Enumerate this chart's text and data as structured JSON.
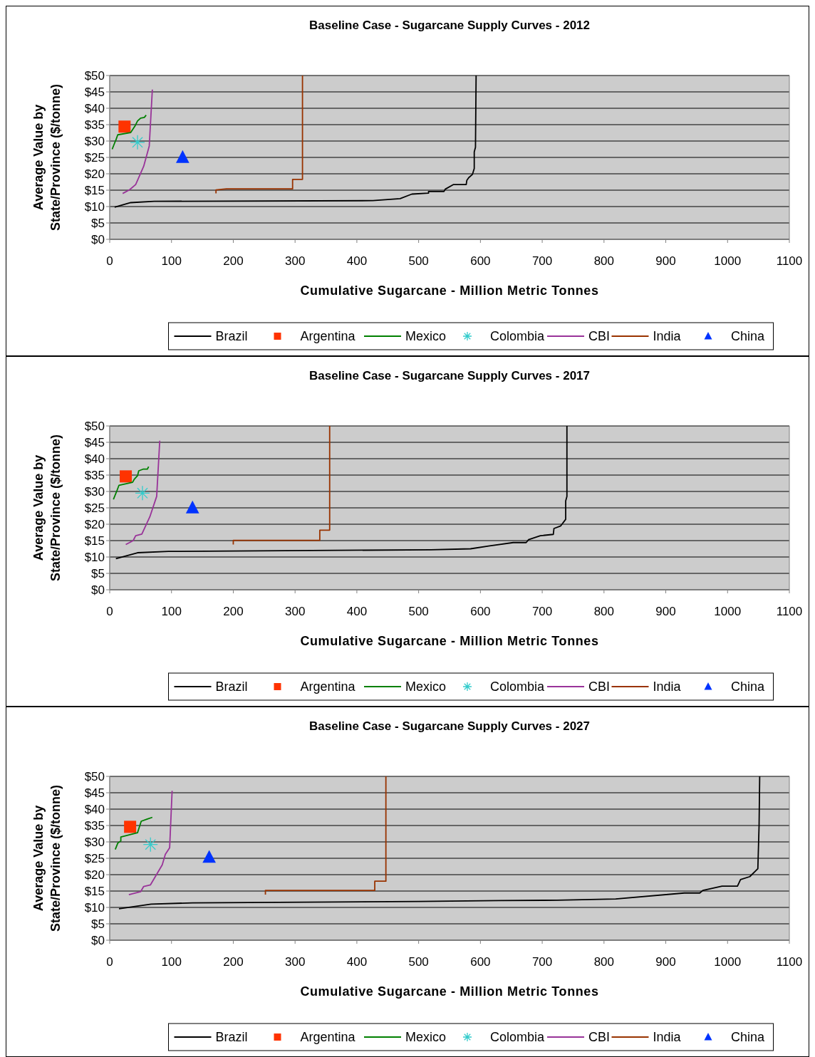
{
  "chart_data": [
    {
      "type": "line",
      "title": "Baseline Case - Sugarcane Supply Curves - 2012",
      "xlabel": "Cumulative Sugarcane - Million Metric Tonnes",
      "ylabel": "Average Value by State/Province ($/tonne)",
      "xlim": [
        0,
        1100
      ],
      "xticks": [
        0,
        100,
        200,
        300,
        400,
        500,
        600,
        700,
        800,
        900,
        1000,
        1100
      ],
      "ylim": [
        0,
        50
      ],
      "yticks": [
        {
          "value": 0,
          "label": "$0"
        },
        {
          "value": 5,
          "label": "$5"
        },
        {
          "value": 10,
          "label": "$10"
        },
        {
          "value": 15,
          "label": "$15"
        },
        {
          "value": 20,
          "label": "$20"
        },
        {
          "value": 25,
          "label": "$25"
        },
        {
          "value": 30,
          "label": "$30"
        },
        {
          "value": 35,
          "label": "$35"
        },
        {
          "value": 40,
          "label": "$40"
        },
        {
          "value": 45,
          "label": "$45"
        },
        {
          "value": 50,
          "label": "$50"
        }
      ],
      "grid": "y",
      "legend": "bottom",
      "series": [
        {
          "name": "Brazil",
          "color": "#000000",
          "marker": "none",
          "x": [
            8,
            34,
            72,
            426,
            470,
            489,
            516,
            516,
            541,
            543,
            556,
            577,
            578,
            581,
            587,
            590,
            590,
            592,
            593
          ],
          "values": [
            9.8,
            11.2,
            11.6,
            11.8,
            12.4,
            13.8,
            14.1,
            14.6,
            14.6,
            15.3,
            16.7,
            16.7,
            18,
            18.8,
            19.8,
            21.6,
            26.7,
            28.1,
            50
          ]
        },
        {
          "name": "Argentina",
          "color": "#ff3300",
          "type": "scatter",
          "marker": "square",
          "x": [
            24
          ],
          "values": [
            34.4
          ]
        },
        {
          "name": "Mexico",
          "color": "#008000",
          "type": "line",
          "marker": "none",
          "x": [
            4,
            9,
            10,
            13,
            34,
            41,
            45,
            50,
            56,
            59
          ],
          "values": [
            27.5,
            29.9,
            30.3,
            31.9,
            32.6,
            34.6,
            36.1,
            37,
            37.2,
            37.9
          ]
        },
        {
          "name": "Colombia",
          "color": "#33cccc",
          "type": "scatter",
          "marker": "cross",
          "x": [
            45
          ],
          "values": [
            29.6
          ]
        },
        {
          "name": "CBI",
          "color": "#993399",
          "type": "line",
          "marker": "none",
          "x": [
            21,
            32,
            42,
            55,
            64,
            69
          ],
          "values": [
            14,
            15.1,
            16.7,
            22.3,
            28.5,
            45.7
          ]
        },
        {
          "name": "India",
          "color": "#993300",
          "type": "line",
          "marker": "none",
          "x": [
            172,
            172,
            189,
            296,
            296,
            312,
            312
          ],
          "values": [
            14,
            15.1,
            15.4,
            15.4,
            18.3,
            18.3,
            50
          ]
        },
        {
          "name": "China",
          "color": "#0033ff",
          "type": "scatter",
          "marker": "triangle",
          "x": [
            118
          ],
          "values": [
            25
          ]
        }
      ]
    },
    {
      "type": "line",
      "title": "Baseline Case - Sugarcane Supply Curves - 2017",
      "xlabel": "Cumulative Sugarcane - Million Metric Tonnes",
      "ylabel": "Average Value by State/Province ($/tonne)",
      "xlim": [
        0,
        1100
      ],
      "xticks": [
        0,
        100,
        200,
        300,
        400,
        500,
        600,
        700,
        800,
        900,
        1000,
        1100
      ],
      "ylim": [
        0,
        50
      ],
      "yticks": [
        {
          "value": 0,
          "label": "$0"
        },
        {
          "value": 5,
          "label": "$5"
        },
        {
          "value": 10,
          "label": "$10"
        },
        {
          "value": 15,
          "label": "$15"
        },
        {
          "value": 20,
          "label": "$20"
        },
        {
          "value": 25,
          "label": "$25"
        },
        {
          "value": 30,
          "label": "$30"
        },
        {
          "value": 35,
          "label": "$35"
        },
        {
          "value": 40,
          "label": "$40"
        },
        {
          "value": 45,
          "label": "$45"
        },
        {
          "value": 50,
          "label": "$50"
        }
      ],
      "grid": "y",
      "legend": "bottom",
      "series": [
        {
          "name": "Brazil",
          "color": "#000000",
          "marker": "none",
          "x": [
            10,
            45,
            95,
            520,
            584,
            615,
            653,
            674,
            678,
            697,
            718,
            719,
            730,
            738,
            738,
            740,
            740
          ],
          "values": [
            9.5,
            11.3,
            11.7,
            12.2,
            12.5,
            13.4,
            14.4,
            14.4,
            15.3,
            16.5,
            16.9,
            18.7,
            19.5,
            21.5,
            27.1,
            28.5,
            50
          ]
        },
        {
          "name": "Argentina",
          "color": "#ff3300",
          "type": "scatter",
          "marker": "square",
          "x": [
            26
          ],
          "values": [
            34.6
          ]
        },
        {
          "name": "Mexico",
          "color": "#008000",
          "type": "line",
          "marker": "none",
          "x": [
            6,
            11,
            15,
            37,
            40,
            45,
            47,
            54,
            61,
            63
          ],
          "values": [
            27.6,
            29.9,
            31.9,
            32.8,
            33.8,
            34.8,
            36.3,
            36.8,
            36.8,
            37.6
          ]
        },
        {
          "name": "Colombia",
          "color": "#33cccc",
          "type": "scatter",
          "marker": "cross",
          "x": [
            53
          ],
          "values": [
            29.5
          ]
        },
        {
          "name": "CBI",
          "color": "#993399",
          "type": "line",
          "marker": "none",
          "x": [
            26,
            38,
            42,
            52,
            65,
            76,
            81
          ],
          "values": [
            13.8,
            15,
            16.5,
            17,
            22.3,
            28.5,
            45.5
          ]
        },
        {
          "name": "India",
          "color": "#993300",
          "type": "line",
          "marker": "none",
          "x": [
            200,
            200,
            340,
            340,
            356,
            356
          ],
          "values": [
            13.8,
            15.1,
            15.1,
            18.2,
            18.2,
            50
          ]
        },
        {
          "name": "China",
          "color": "#0033ff",
          "type": "scatter",
          "marker": "triangle",
          "x": [
            134
          ],
          "values": [
            25
          ]
        }
      ]
    },
    {
      "type": "line",
      "title": "Baseline Case - Sugarcane Supply Curves - 2027",
      "xlabel": "Cumulative Sugarcane - Million Metric Tonnes",
      "ylabel": "Average Value by State/Province ($/tonne)",
      "xlim": [
        0,
        1100
      ],
      "xticks": [
        0,
        100,
        200,
        300,
        400,
        500,
        600,
        700,
        800,
        900,
        1000,
        1100
      ],
      "ylim": [
        0,
        50
      ],
      "yticks": [
        {
          "value": 0,
          "label": "$0"
        },
        {
          "value": 5,
          "label": "$5"
        },
        {
          "value": 10,
          "label": "$10"
        },
        {
          "value": 15,
          "label": "$15"
        },
        {
          "value": 20,
          "label": "$20"
        },
        {
          "value": 25,
          "label": "$25"
        },
        {
          "value": 30,
          "label": "$30"
        },
        {
          "value": 35,
          "label": "$35"
        },
        {
          "value": 40,
          "label": "$40"
        },
        {
          "value": 45,
          "label": "$45"
        },
        {
          "value": 50,
          "label": "$50"
        }
      ],
      "grid": "y",
      "legend": "bottom",
      "series": [
        {
          "name": "Brazil",
          "color": "#000000",
          "marker": "none",
          "x": [
            15,
            67,
            134,
            500,
            630,
            724,
            819,
            930,
            955,
            960,
            991,
            1016,
            1021,
            1036,
            1049,
            1051,
            1052
          ],
          "values": [
            9.6,
            11,
            11.4,
            11.8,
            12.1,
            12.2,
            12.6,
            14.4,
            14.4,
            15.2,
            16.5,
            16.5,
            18.5,
            19.4,
            21.8,
            35,
            50
          ]
        },
        {
          "name": "Argentina",
          "color": "#ff3300",
          "type": "scatter",
          "marker": "square",
          "x": [
            33
          ],
          "values": [
            34.6
          ]
        },
        {
          "name": "Mexico",
          "color": "#008000",
          "type": "line",
          "marker": "none",
          "x": [
            9,
            13,
            18,
            18,
            45,
            51,
            61,
            69
          ],
          "values": [
            27.7,
            29.6,
            30.3,
            31.5,
            32.8,
            36.3,
            37,
            37.5
          ]
        },
        {
          "name": "Colombia",
          "color": "#33cccc",
          "type": "scatter",
          "marker": "cross",
          "x": [
            66
          ],
          "values": [
            29.2
          ]
        },
        {
          "name": "CBI",
          "color": "#993399",
          "type": "line",
          "marker": "none",
          "x": [
            31,
            50,
            55,
            66,
            85,
            90,
            97,
            101
          ],
          "values": [
            13.9,
            14.8,
            16.4,
            16.9,
            23,
            26.2,
            28.2,
            45.6
          ]
        },
        {
          "name": "India",
          "color": "#993300",
          "type": "line",
          "marker": "none",
          "x": [
            252,
            252,
            429,
            429,
            447,
            447
          ],
          "values": [
            13.9,
            15.2,
            15.2,
            18,
            18,
            50
          ]
        },
        {
          "name": "China",
          "color": "#0033ff",
          "type": "scatter",
          "marker": "triangle",
          "x": [
            161
          ],
          "values": [
            25.3
          ]
        }
      ]
    }
  ]
}
